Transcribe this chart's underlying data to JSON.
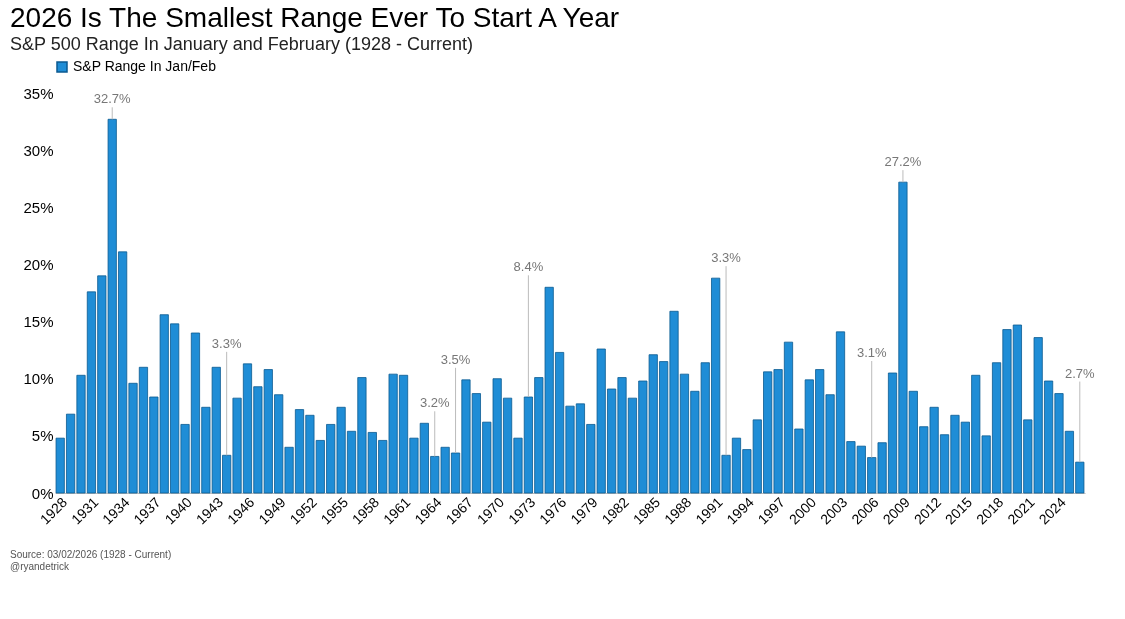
{
  "chart_data": {
    "type": "bar",
    "title": "2026 Is The Smallest Range Ever To Start A Year",
    "subtitle": "S&P 500 Range In January and February (1928 - Current)",
    "categories": [
      "1928",
      null,
      null,
      "1931",
      null,
      null,
      "1934",
      null,
      null,
      "1937",
      null,
      null,
      "1940",
      null,
      null,
      "1943",
      null,
      null,
      "1946",
      null,
      null,
      "1949",
      null,
      null,
      "1952",
      null,
      null,
      "1955",
      null,
      null,
      "1958",
      null,
      null,
      "1961",
      null,
      null,
      "1964",
      null,
      null,
      "1967",
      null,
      null,
      "1970",
      null,
      null,
      "1973",
      null,
      null,
      "1976",
      null,
      null,
      "1979",
      null,
      null,
      "1982",
      null,
      null,
      "1985",
      null,
      null,
      "1988",
      null,
      null,
      "1991",
      null,
      null,
      "1994",
      null,
      null,
      "1997",
      null,
      null,
      "2000",
      null,
      null,
      "2003",
      null,
      null,
      "2006",
      null,
      null,
      "2009",
      null,
      null,
      "2012",
      null,
      null,
      "2015",
      null,
      null,
      "2018",
      null,
      null,
      "2021",
      null,
      null,
      "2024",
      null,
      null
    ],
    "series": [
      {
        "name": "S&P Range In Jan/Feb",
        "color": "#1f8dd6",
        "values": [
          4.8,
          6.9,
          10.3,
          17.6,
          19.0,
          32.7,
          21.1,
          9.6,
          11.0,
          8.4,
          15.6,
          14.8,
          6.0,
          14.0,
          7.5,
          11.0,
          3.3,
          8.3,
          11.3,
          9.3,
          10.8,
          8.6,
          4.0,
          7.3,
          6.8,
          4.6,
          6.0,
          7.5,
          5.4,
          10.1,
          5.3,
          4.6,
          10.4,
          10.3,
          4.8,
          6.1,
          3.2,
          4.0,
          3.5,
          9.9,
          8.7,
          6.2,
          10.0,
          8.3,
          4.8,
          8.4,
          10.1,
          18.0,
          12.3,
          7.6,
          7.8,
          6.0,
          12.6,
          9.1,
          10.1,
          8.3,
          9.8,
          12.1,
          11.5,
          15.9,
          10.4,
          8.9,
          11.4,
          18.8,
          3.3,
          4.8,
          3.8,
          6.4,
          10.6,
          10.8,
          13.2,
          5.6,
          9.9,
          10.8,
          8.6,
          14.1,
          4.5,
          4.1,
          3.1,
          4.4,
          10.5,
          27.2,
          8.9,
          5.8,
          7.5,
          5.1,
          6.8,
          6.2,
          10.3,
          5.0,
          11.4,
          14.3,
          14.7,
          6.4,
          13.6,
          9.8,
          8.7,
          5.4,
          2.7
        ],
        "value_labels": [
          null,
          null,
          null,
          null,
          null,
          "32.7%",
          null,
          null,
          null,
          null,
          null,
          null,
          null,
          null,
          null,
          null,
          "3.3%",
          null,
          null,
          null,
          null,
          null,
          null,
          null,
          null,
          null,
          null,
          null,
          null,
          null,
          null,
          null,
          null,
          null,
          null,
          null,
          "3.2%",
          null,
          "3.5%",
          null,
          null,
          null,
          null,
          null,
          null,
          "8.4%",
          null,
          null,
          null,
          null,
          null,
          null,
          null,
          null,
          null,
          null,
          null,
          null,
          null,
          null,
          null,
          null,
          null,
          null,
          "3.3%",
          null,
          null,
          null,
          null,
          null,
          null,
          null,
          null,
          null,
          null,
          null,
          null,
          null,
          "3.1%",
          null,
          null,
          "27.2%",
          null,
          null,
          null,
          null,
          null,
          null,
          null,
          null,
          null,
          null,
          null,
          null,
          null,
          null,
          null,
          null,
          "2.7%"
        ]
      }
    ],
    "ylim": [
      0,
      35
    ],
    "yticks": [
      {
        "value": 0,
        "label": "0%"
      },
      {
        "value": 5,
        "label": "5%"
      },
      {
        "value": 10,
        "label": "10%"
      },
      {
        "value": 15,
        "label": "15%"
      },
      {
        "value": 20,
        "label": "20%"
      },
      {
        "value": 25,
        "label": "25%"
      },
      {
        "value": 30,
        "label": "30%"
      },
      {
        "value": 35,
        "label": "35%"
      }
    ],
    "grid": false,
    "legend": "top",
    "annotations": [
      "Source: 03/02/2026 (1928 - Current)",
      "@ryandetrick"
    ]
  }
}
